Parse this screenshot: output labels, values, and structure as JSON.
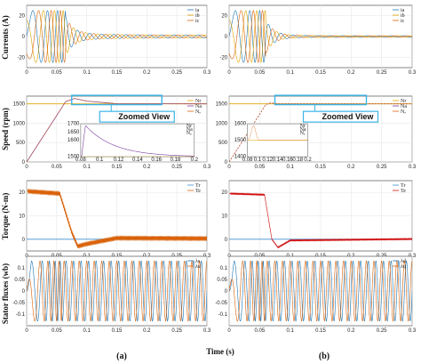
{
  "figure": {
    "xlabel": "Time (s)",
    "panel_labels": [
      "(a)",
      "(b)"
    ],
    "zoom_label": "Zoomed View"
  },
  "colors": {
    "blue": "#1f77b4",
    "orange": "#d9620a",
    "gold": "#e0a400",
    "purple": "#7b3fa0",
    "red": "#d11010",
    "steel": "#3d8fd6",
    "zoom_box": "#3bb4e6"
  },
  "chart_data": [
    {
      "type": "line",
      "column": "a",
      "row": "currents",
      "ylabel": "Currents (A)",
      "xlim": [
        0,
        0.3
      ],
      "ylim": [
        -30,
        30
      ],
      "xticks": [
        "0",
        "0.05",
        "0.1",
        "0.15",
        "0.2",
        "0.25",
        "0.3"
      ],
      "yticks": [
        "-20",
        "0",
        "20"
      ],
      "legend": [
        "ia",
        "ib",
        "ic"
      ],
      "legend_position": "top-right",
      "series": [
        {
          "name": "ia",
          "description_values": {
            "peak_startup": 25,
            "startup_end": 0.065,
            "steady_peak": 1.5
          }
        },
        {
          "name": "ib",
          "description_values": {
            "peak_startup": 25,
            "startup_end": 0.065,
            "steady_peak": 1.5
          }
        },
        {
          "name": "ic",
          "description_values": {
            "peak_startup": 25,
            "startup_end": 0.065,
            "steady_peak": 1.5
          }
        }
      ]
    },
    {
      "type": "line",
      "column": "b",
      "row": "currents",
      "ylabel": "",
      "xlim": [
        0,
        0.3
      ],
      "ylim": [
        -30,
        30
      ],
      "xticks": [
        "0",
        "0.05",
        "0.1",
        "0.15",
        "0.2",
        "0.25",
        "0.3"
      ],
      "yticks": [
        "-20",
        "0",
        "20"
      ],
      "legend": [
        "ia",
        "ib",
        "ic"
      ],
      "legend_position": "top-right",
      "series": [
        {
          "name": "ia",
          "description_values": {
            "peak_startup": 25,
            "startup_end": 0.06,
            "steady_peak": 0.8
          }
        },
        {
          "name": "ib",
          "description_values": {
            "peak_startup": 25,
            "startup_end": 0.06,
            "steady_peak": 0.8
          }
        },
        {
          "name": "ic",
          "description_values": {
            "peak_startup": 25,
            "startup_end": 0.06,
            "steady_peak": 0.8
          }
        }
      ]
    },
    {
      "type": "line",
      "column": "a",
      "row": "speed",
      "ylabel": "Speed (rpm)",
      "xlim": [
        0,
        0.3
      ],
      "ylim": [
        0,
        1700
      ],
      "xticks": [
        "0",
        "0.05",
        "0.1",
        "0.15",
        "0.2",
        "0.25",
        "0.3"
      ],
      "yticks": [
        "0",
        "500",
        "1000",
        "1500"
      ],
      "legend": [
        "Nr",
        "Na",
        "Nₑ"
      ],
      "legend_position": "top-right",
      "series": [
        {
          "name": "Nr",
          "values_x": [
            0,
            0.3
          ],
          "values_y": [
            1500,
            1500
          ]
        },
        {
          "name": "Na",
          "values_x": [
            0,
            0.065,
            0.08,
            0.1,
            0.15,
            0.3
          ],
          "values_y": [
            0,
            1560,
            1640,
            1570,
            1505,
            1500
          ]
        },
        {
          "name": "Nₑ",
          "values_x": [
            0,
            0.065,
            0.08,
            0.1,
            0.15,
            0.3
          ],
          "values_y": [
            0,
            1560,
            1640,
            1570,
            1505,
            1500
          ]
        }
      ],
      "inset": {
        "xlim": [
          0.08,
          0.2
        ],
        "xticks": [
          "0.08",
          "0.1",
          "0.12",
          "0.14",
          "0.16",
          "0.18",
          "0.2"
        ],
        "yticks": [
          "1500",
          "1600",
          "1650",
          "1700"
        ]
      }
    },
    {
      "type": "line",
      "column": "b",
      "row": "speed",
      "ylabel": "",
      "xlim": [
        0,
        0.3
      ],
      "ylim": [
        0,
        1700
      ],
      "xticks": [
        "0",
        "0.05",
        "0.1",
        "0.15",
        "0.2",
        "0.25",
        "0.3"
      ],
      "yticks": [
        "0",
        "500",
        "1000",
        "1500"
      ],
      "legend": [
        "Nr",
        "Na",
        "Nₑ"
      ],
      "legend_position": "top-right",
      "series": [
        {
          "name": "Nr",
          "values_x": [
            0,
            0.3
          ],
          "values_y": [
            1500,
            1500
          ]
        },
        {
          "name": "Na",
          "values_x": [
            0,
            0.06,
            0.068,
            0.08,
            0.3
          ],
          "values_y": [
            0,
            1480,
            1525,
            1502,
            1500
          ]
        },
        {
          "name": "Nₑ",
          "values_x": [
            0,
            0.06,
            0.068,
            0.08,
            0.3
          ],
          "values_y": [
            0,
            1480,
            1525,
            1502,
            1500
          ]
        }
      ],
      "inset": {
        "xlim": [
          0.08,
          0.2
        ],
        "xticks": [
          "0.08",
          "0.1",
          "0.12",
          "0.14",
          "0.16",
          "0.18",
          "0.2"
        ],
        "yticks": [
          "1400",
          "1500",
          "1600"
        ]
      }
    },
    {
      "type": "line",
      "column": "a",
      "row": "torque",
      "ylabel": "Torque (N-m)",
      "xlim": [
        0,
        0.3
      ],
      "ylim": [
        -5,
        25
      ],
      "xticks": [
        "0",
        "0.05",
        "0.1",
        "0.15",
        "0.2",
        "0.25",
        "0.3"
      ],
      "yticks": [
        "0",
        "10",
        "20"
      ],
      "legend": [
        "Tr",
        "Te"
      ],
      "legend_position": "top-right",
      "series": [
        {
          "name": "Tr",
          "values_x": [
            0,
            0.3
          ],
          "values_y": [
            0,
            0
          ]
        },
        {
          "name": "Te",
          "values_x": [
            0,
            0.055,
            0.075,
            0.085,
            0.1,
            0.15,
            0.3
          ],
          "values_y": [
            20.5,
            19.5,
            3,
            -3,
            -2,
            0.5,
            0.3
          ]
        }
      ]
    },
    {
      "type": "line",
      "column": "b",
      "row": "torque",
      "ylabel": "",
      "xlim": [
        0,
        0.3
      ],
      "ylim": [
        -5,
        25
      ],
      "xticks": [
        "0",
        "0.05",
        "0.1",
        "0.15",
        "0.2",
        "0.25",
        "0.3"
      ],
      "yticks": [
        "0",
        "10",
        "20"
      ],
      "legend": [
        "Tr",
        "Te"
      ],
      "legend_position": "top-right",
      "series": [
        {
          "name": "Tr",
          "values_x": [
            0,
            0.3
          ],
          "values_y": [
            0,
            0
          ]
        },
        {
          "name": "Te",
          "values_x": [
            0,
            0.058,
            0.07,
            0.08,
            0.1,
            0.3
          ],
          "values_y": [
            19.5,
            19,
            0,
            -3.5,
            -0.5,
            0.1
          ]
        }
      ]
    },
    {
      "type": "line",
      "column": "a",
      "row": "flux",
      "ylabel": "Stator fluxes (wb)",
      "xlim": [
        0,
        0.3
      ],
      "ylim": [
        -0.15,
        0.15
      ],
      "xticks": [
        "0",
        "0.05",
        "0.1",
        "0.15",
        "0.2",
        "0.25",
        "0.3"
      ],
      "yticks": [
        "-0.1",
        "-0.05",
        "0",
        "0.05",
        "0.1"
      ],
      "legend": [
        "λs",
        "λs"
      ],
      "legend_position": "top-right",
      "series": [
        {
          "name": "λs",
          "description_values": {
            "amplitude": 0.13,
            "frequency_hz": 50
          }
        },
        {
          "name": "λs",
          "description_values": {
            "amplitude": 0.13,
            "frequency_hz": 50
          }
        }
      ]
    },
    {
      "type": "line",
      "column": "b",
      "row": "flux",
      "ylabel": "",
      "xlim": [
        0,
        0.3
      ],
      "ylim": [
        -0.15,
        0.15
      ],
      "xticks": [
        "0",
        "0.05",
        "0.1",
        "0.15",
        "0.2",
        "0.25",
        "0.3"
      ],
      "yticks": [
        "-0.1",
        "-0.05",
        "0",
        "0.05",
        "0.1"
      ],
      "legend": [
        "λd",
        "λq"
      ],
      "legend_position": "top-right",
      "series": [
        {
          "name": "λd",
          "description_values": {
            "amplitude": 0.13,
            "frequency_hz": 50
          }
        },
        {
          "name": "λq",
          "description_values": {
            "amplitude": 0.13,
            "frequency_hz": 50
          }
        }
      ]
    }
  ]
}
